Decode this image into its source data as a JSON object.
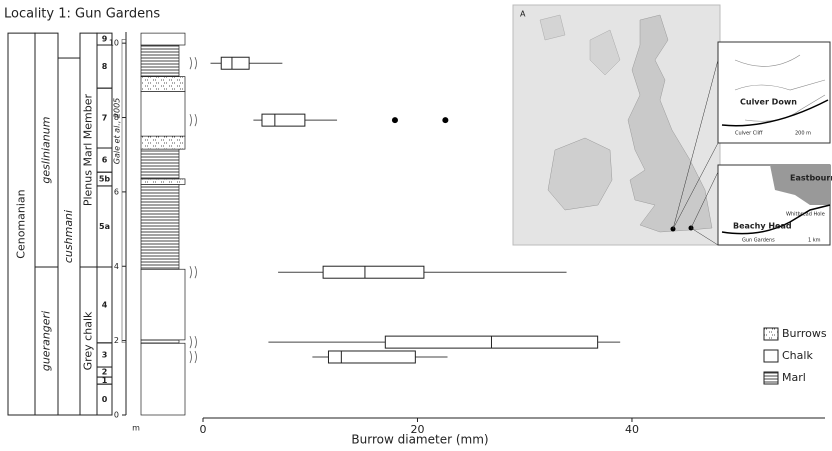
{
  "chart_data": {
    "type": "box",
    "title": "Locality 1: Gun Gardens",
    "x_label": "Burrow diameter (mm)",
    "y_label": "m",
    "xlim": [
      0,
      58
    ],
    "xticks": [
      0,
      20,
      40
    ],
    "ylim": [
      0,
      10.3
    ],
    "yticks": [
      0,
      2,
      4,
      6,
      8,
      10
    ],
    "series": [
      {
        "y": 9.46,
        "whisker_low": 0.7,
        "q1": 1.7,
        "median": 2.7,
        "q3": 4.3,
        "whisker_high": 7.4
      },
      {
        "y": 7.93,
        "whisker_low": 4.7,
        "q1": 5.5,
        "median": 6.7,
        "q3": 9.5,
        "whisker_high": 12.5,
        "outliers": [
          17.9,
          22.6
        ]
      },
      {
        "y": 3.84,
        "whisker_low": 7.0,
        "q1": 11.2,
        "median": 15.1,
        "q3": 20.6,
        "whisker_high": 33.9
      },
      {
        "y": 1.96,
        "whisker_low": 6.1,
        "q1": 17.0,
        "median": 26.9,
        "q3": 36.8,
        "whisker_high": 38.9
      },
      {
        "y": 1.56,
        "whisker_low": 10.2,
        "q1": 11.7,
        "median": 12.9,
        "q3": 19.8,
        "whisker_high": 22.8
      }
    ],
    "stratigraphy": {
      "stage": [
        {
          "label": "Cenomanian",
          "bottom": 0,
          "top": 10.27
        }
      ],
      "zones": [
        {
          "label": "guerangeri",
          "bottom": 0,
          "top": 3.98
        },
        {
          "label": "geslinianum",
          "bottom": 3.98,
          "top": 10.27
        }
      ],
      "subzones": [
        {
          "label": "cushmani",
          "bottom": 0,
          "top": 9.6
        }
      ],
      "members": [
        {
          "label": "Grey chalk",
          "bottom": 0,
          "top": 3.98
        },
        {
          "label": "Plenus Marl Member",
          "bottom": 3.98,
          "top": 10.27
        }
      ],
      "beds": [
        {
          "label": "0",
          "bottom": 0,
          "top": 0.83
        },
        {
          "label": "1",
          "bottom": 0.83,
          "top": 1.02
        },
        {
          "label": "2",
          "bottom": 1.02,
          "top": 1.29
        },
        {
          "label": "3",
          "bottom": 1.29,
          "top": 1.94
        },
        {
          "label": "4",
          "bottom": 1.94,
          "top": 3.98
        },
        {
          "label": "5a",
          "bottom": 3.98,
          "top": 6.16
        },
        {
          "label": "5b",
          "bottom": 6.16,
          "top": 6.53
        },
        {
          "label": "6",
          "bottom": 6.53,
          "top": 7.18
        },
        {
          "label": "7",
          "bottom": 7.18,
          "top": 8.79
        },
        {
          "label": "8",
          "bottom": 8.79,
          "top": 9.95
        },
        {
          "label": "9",
          "bottom": 9.95,
          "top": 10.27
        }
      ],
      "reference": {
        "label": "Gale et al., 2005",
        "bottom": 1.95,
        "top": 10.1
      }
    },
    "lithology": [
      {
        "type": "Chalk",
        "bottom": 0,
        "top": 1.93
      },
      {
        "type": "Marl",
        "bottom": 1.93,
        "top": 2.02
      },
      {
        "type": "Chalk",
        "bottom": 2.02,
        "top": 3.92
      },
      {
        "type": "Marl",
        "bottom": 3.92,
        "top": 6.2
      },
      {
        "type": "Burrows",
        "bottom": 6.2,
        "top": 6.35
      },
      {
        "type": "Marl",
        "bottom": 6.35,
        "top": 7.15
      },
      {
        "type": "Burrows",
        "bottom": 7.15,
        "top": 7.5
      },
      {
        "type": "Chalk",
        "bottom": 7.5,
        "top": 8.7
      },
      {
        "type": "Burrows",
        "bottom": 8.7,
        "top": 9.1
      },
      {
        "type": "Marl",
        "bottom": 9.1,
        "top": 9.95
      },
      {
        "type": "Chalk",
        "bottom": 9.95,
        "top": 10.27
      }
    ],
    "legend": [
      {
        "label": "Burrows"
      },
      {
        "label": "Chalk"
      },
      {
        "label": "Marl"
      }
    ]
  },
  "map": {
    "panel": "A",
    "inset_north": [
      "Culver Down",
      "Culver Cliff",
      "200 m"
    ],
    "inset_south": [
      "Eastbourne",
      "Beachy Head",
      "Whitbread Hole",
      "Gun Gardens",
      "1 km"
    ]
  }
}
